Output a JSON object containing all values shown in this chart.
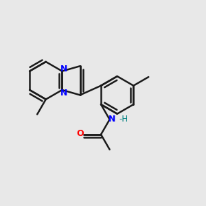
{
  "background_color": "#e8e8e8",
  "bond_color": "#1a1a1a",
  "N_color": "#0000ff",
  "O_color": "#ff0000",
  "H_color": "#008080",
  "bond_width": 1.8,
  "figsize": [
    3.0,
    3.0
  ],
  "dpi": 100,
  "xlim": [
    0,
    10
  ],
  "ylim": [
    0,
    10
  ]
}
